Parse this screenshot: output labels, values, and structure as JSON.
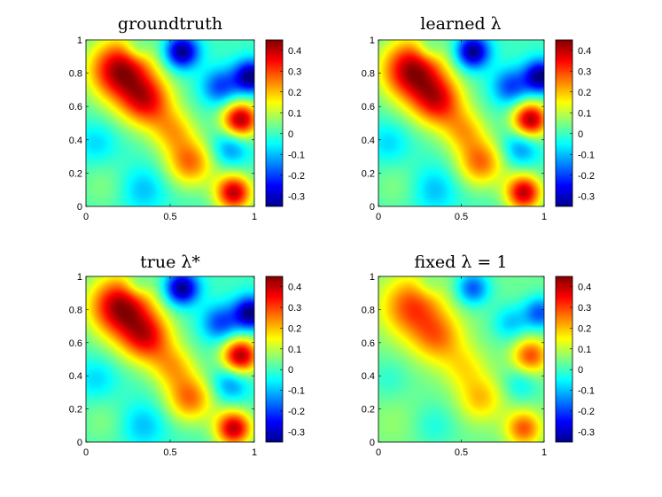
{
  "chart_data": [
    {
      "type": "heatmap",
      "title": "groundtruth",
      "xlim": [
        0,
        1
      ],
      "ylim": [
        0,
        1
      ],
      "xticks": [
        "0",
        "0.5",
        "1"
      ],
      "yticks": [
        "0",
        "0.2",
        "0.4",
        "0.6",
        "0.8",
        "1"
      ],
      "colorbar": {
        "range": [
          -0.35,
          0.45
        ],
        "ticks": [
          "-0.3",
          "-0.2",
          "-0.1",
          "0",
          "0.1",
          "0.2",
          "0.3",
          "0.4"
        ],
        "colormap": "jet"
      },
      "field_scale": 1.0,
      "description_values": {
        "max_approx": 0.45,
        "min_approx": -0.35
      }
    },
    {
      "type": "heatmap",
      "title": "learned λ",
      "xlim": [
        0,
        1
      ],
      "ylim": [
        0,
        1
      ],
      "xticks": [
        "0",
        "0.5",
        "1"
      ],
      "yticks": [
        "0",
        "0.2",
        "0.4",
        "0.6",
        "0.8",
        "1"
      ],
      "colorbar": {
        "range": [
          -0.35,
          0.45
        ],
        "ticks": [
          "-0.3",
          "-0.2",
          "-0.1",
          "0",
          "0.1",
          "0.2",
          "0.3",
          "0.4"
        ],
        "colormap": "jet"
      },
      "field_scale": 1.0,
      "description_values": {
        "max_approx": 0.45,
        "min_approx": -0.35
      }
    },
    {
      "type": "heatmap",
      "title": "true λ*",
      "xlim": [
        0,
        1
      ],
      "ylim": [
        0,
        1
      ],
      "xticks": [
        "0",
        "0.5",
        "1"
      ],
      "yticks": [
        "0",
        "0.2",
        "0.4",
        "0.6",
        "0.8",
        "1"
      ],
      "colorbar": {
        "range": [
          -0.35,
          0.45
        ],
        "ticks": [
          "-0.3",
          "-0.2",
          "-0.1",
          "0",
          "0.1",
          "0.2",
          "0.3",
          "0.4"
        ],
        "colormap": "jet"
      },
      "field_scale": 1.0,
      "description_values": {
        "max_approx": 0.45,
        "min_approx": -0.35
      }
    },
    {
      "type": "heatmap",
      "title": "fixed λ = 1",
      "xlim": [
        0,
        1
      ],
      "ylim": [
        0,
        1
      ],
      "xticks": [
        "0",
        "0.5",
        "1"
      ],
      "yticks": [
        "0",
        "0.2",
        "0.4",
        "0.6",
        "0.8",
        "1"
      ],
      "colorbar": {
        "range": [
          -0.35,
          0.45
        ],
        "ticks": [
          "-0.3",
          "-0.2",
          "-0.1",
          "0",
          "0.1",
          "0.2",
          "0.3",
          "0.4"
        ],
        "colormap": "jet"
      },
      "field_scale": 0.62,
      "description_values": {
        "max_approx": 0.3,
        "min_approx": -0.15
      }
    }
  ]
}
